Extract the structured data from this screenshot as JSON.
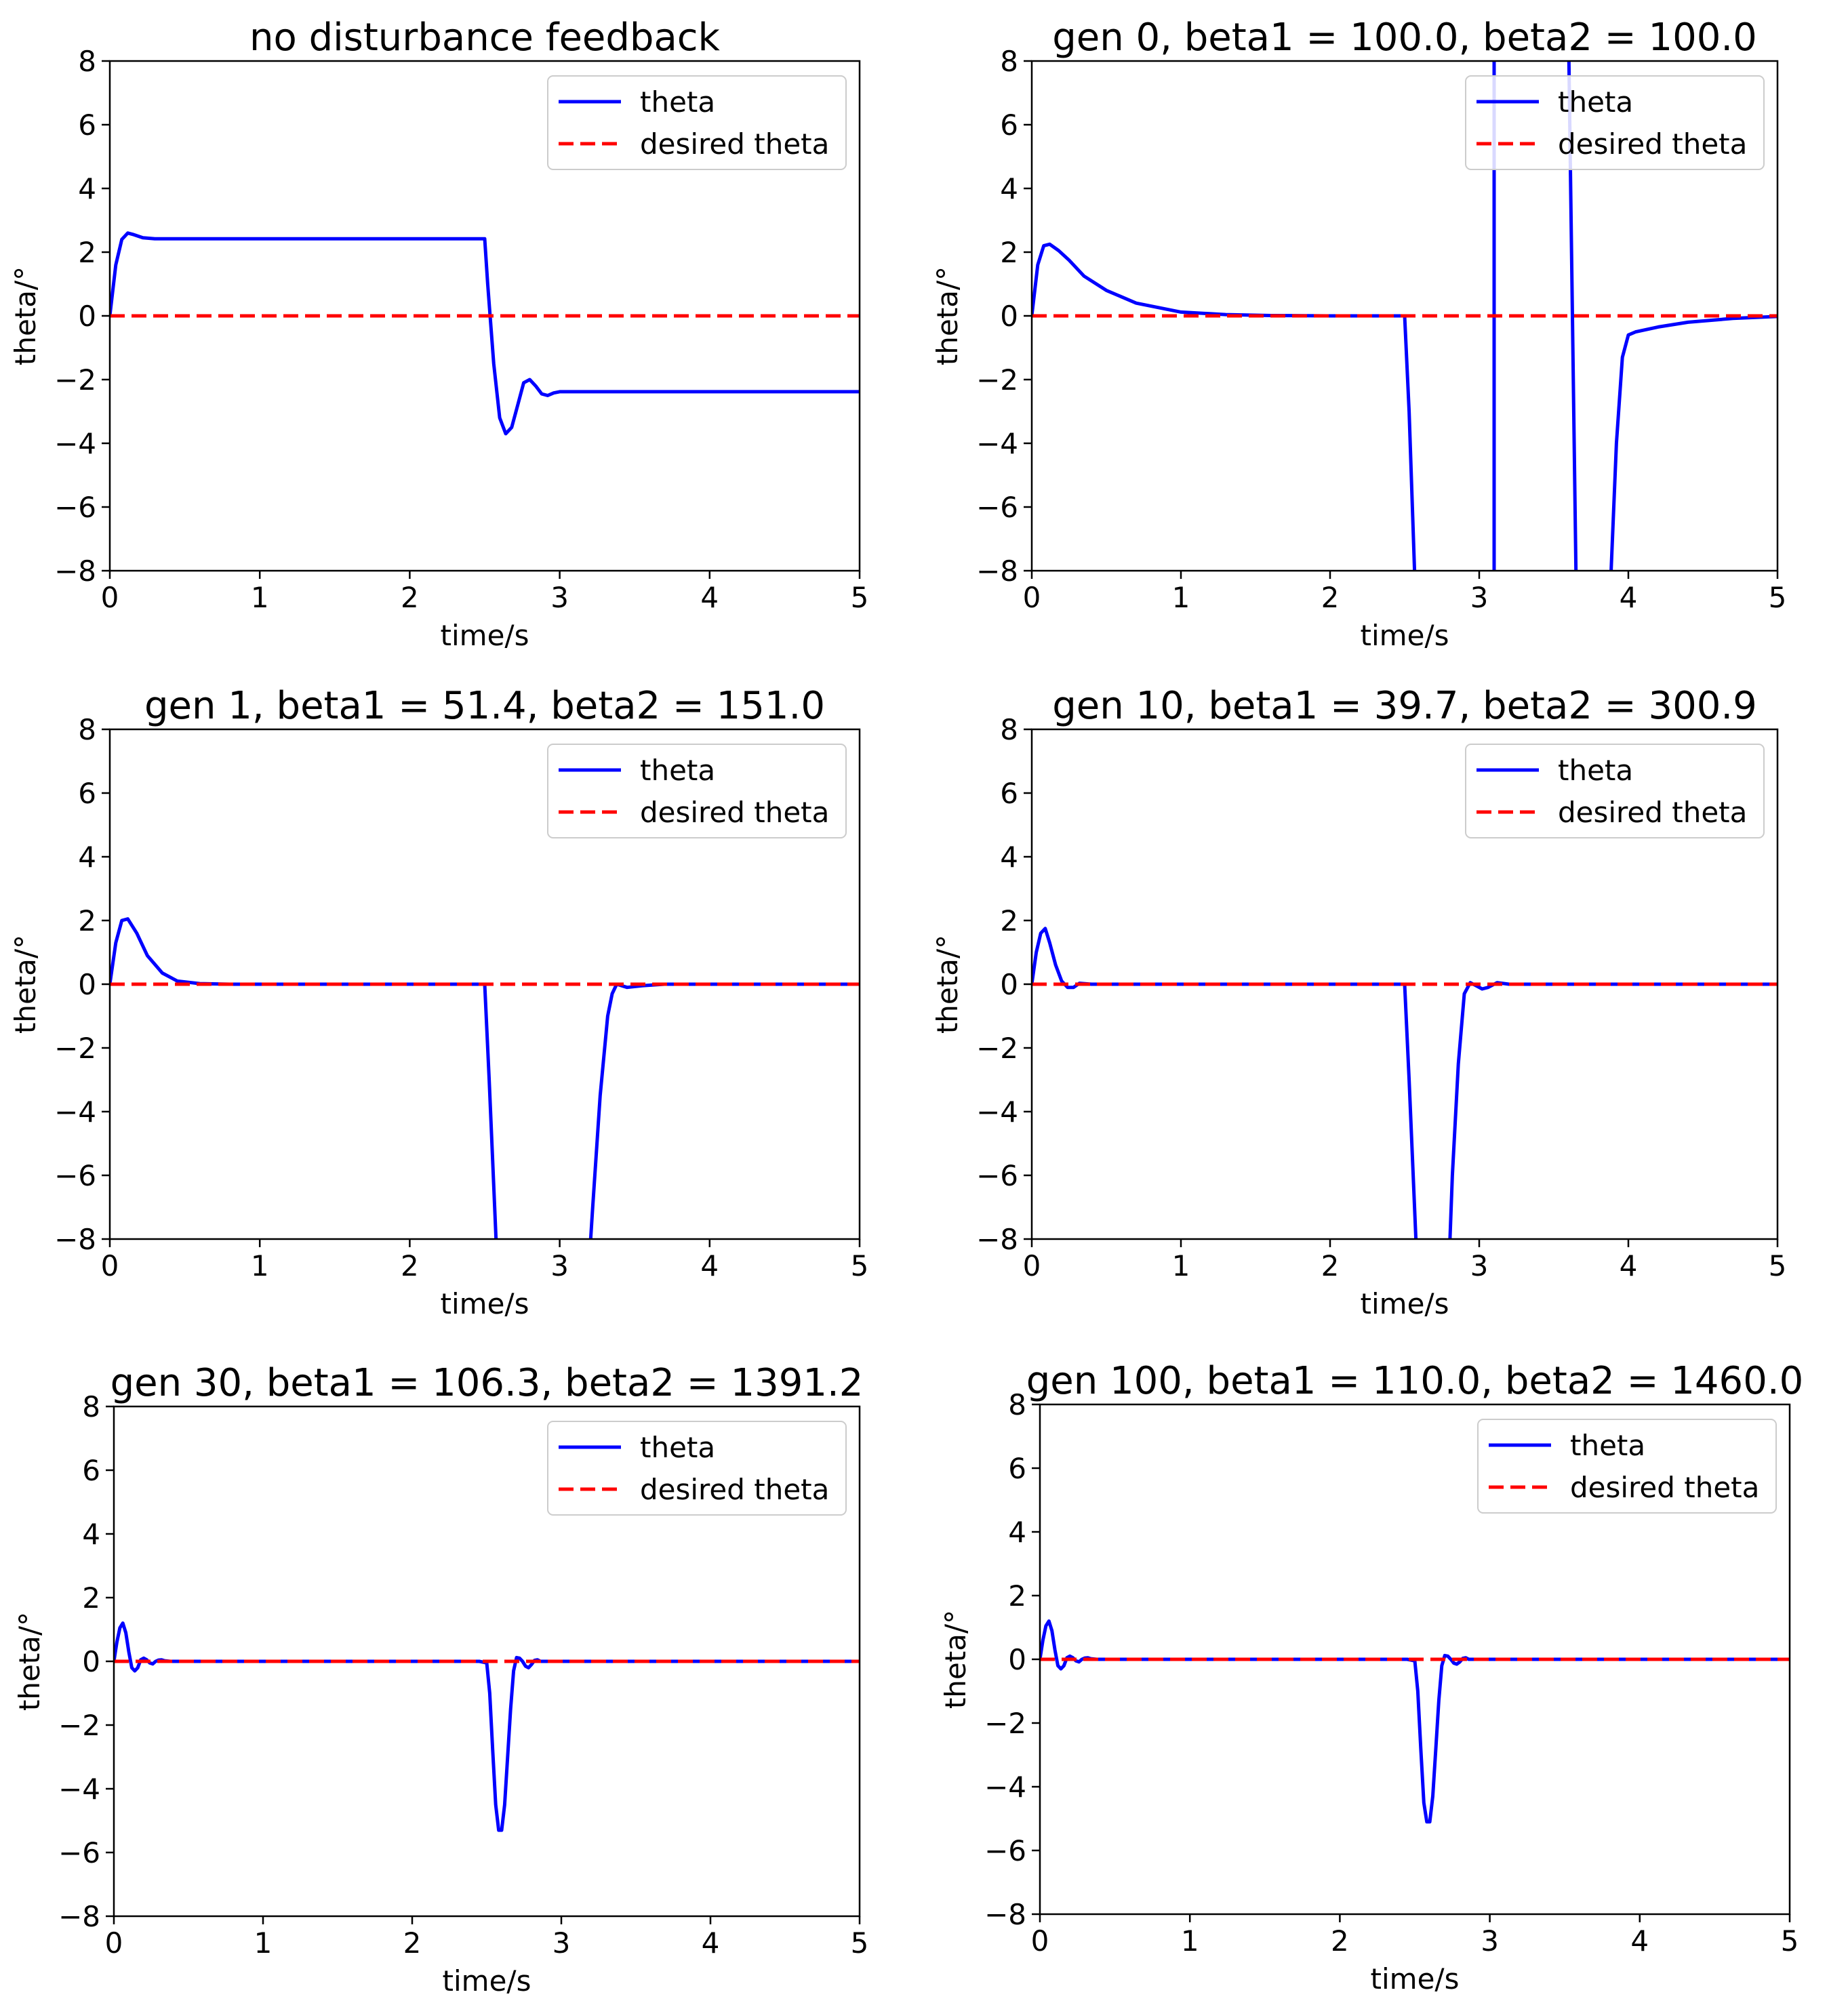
{
  "chart_data": [
    {
      "type": "line",
      "title": "no disturbance feedback",
      "xlabel": "time/s",
      "ylabel": "theta/°",
      "xlim": [
        0,
        5
      ],
      "ylim": [
        -8,
        8
      ],
      "xticks": [
        "0",
        "1",
        "2",
        "3",
        "4",
        "5"
      ],
      "yticks": [
        "8",
        "6",
        "4",
        "2",
        "0",
        "−2",
        "−4",
        "−6",
        "−8"
      ],
      "legend_position": "top-right",
      "series": [
        {
          "name": "theta",
          "color": "#0000ff",
          "style": "solid",
          "x": [
            0,
            0.04,
            0.08,
            0.12,
            0.16,
            0.22,
            0.3,
            0.5,
            1.0,
            1.5,
            2.0,
            2.3,
            2.5,
            2.52,
            2.56,
            2.6,
            2.64,
            2.68,
            2.72,
            2.76,
            2.8,
            2.84,
            2.88,
            2.92,
            2.96,
            3.0,
            3.1,
            3.5,
            4.0,
            4.5,
            5.0
          ],
          "y": [
            0,
            1.6,
            2.4,
            2.6,
            2.55,
            2.45,
            2.42,
            2.42,
            2.42,
            2.42,
            2.42,
            2.42,
            2.42,
            1.0,
            -1.5,
            -3.2,
            -3.7,
            -3.5,
            -2.8,
            -2.1,
            -2.0,
            -2.2,
            -2.45,
            -2.5,
            -2.42,
            -2.38,
            -2.38,
            -2.38,
            -2.38,
            -2.38,
            -2.38
          ]
        },
        {
          "name": "desired theta",
          "color": "#ff0000",
          "style": "dashed",
          "x": [
            0,
            5
          ],
          "y": [
            0,
            0
          ]
        }
      ]
    },
    {
      "type": "line",
      "title": "gen 0, beta1 = 100.0, beta2 = 100.0",
      "xlabel": "time/s",
      "ylabel": "theta/°",
      "xlim": [
        0,
        5
      ],
      "ylim": [
        -8,
        8
      ],
      "xticks": [
        "0",
        "1",
        "2",
        "3",
        "4",
        "5"
      ],
      "yticks": [
        "8",
        "6",
        "4",
        "2",
        "0",
        "−2",
        "−4",
        "−6",
        "−8"
      ],
      "legend_position": "top-right",
      "series": [
        {
          "name": "theta",
          "color": "#0000ff",
          "style": "solid",
          "x": [
            0,
            0.04,
            0.08,
            0.12,
            0.18,
            0.25,
            0.35,
            0.5,
            0.7,
            1.0,
            1.3,
            1.6,
            2.0,
            2.4,
            2.5,
            2.53,
            2.57,
            3.1,
            3.1,
            3.6,
            3.65,
            3.88,
            3.92,
            3.96,
            4.0,
            4.05,
            4.2,
            4.4,
            4.7,
            5.0
          ],
          "y": [
            0,
            1.6,
            2.2,
            2.25,
            2.05,
            1.75,
            1.25,
            0.8,
            0.4,
            0.12,
            0.04,
            0.01,
            0,
            0,
            0,
            -3,
            -8.5,
            -8.5,
            8.5,
            8.5,
            -8.5,
            -8.5,
            -4,
            -1.3,
            -0.6,
            -0.5,
            -0.35,
            -0.2,
            -0.08,
            -0.02
          ]
        },
        {
          "name": "desired theta",
          "color": "#ff0000",
          "style": "dashed",
          "x": [
            0,
            5
          ],
          "y": [
            0,
            0
          ]
        }
      ]
    },
    {
      "type": "line",
      "title": "gen 1, beta1 = 51.4, beta2 = 151.0",
      "xlabel": "time/s",
      "ylabel": "theta/°",
      "xlim": [
        0,
        5
      ],
      "ylim": [
        -8,
        8
      ],
      "xticks": [
        "0",
        "1",
        "2",
        "3",
        "4",
        "5"
      ],
      "yticks": [
        "8",
        "6",
        "4",
        "2",
        "0",
        "−2",
        "−4",
        "−6",
        "−8"
      ],
      "legend_position": "top-right",
      "series": [
        {
          "name": "theta",
          "color": "#0000ff",
          "style": "solid",
          "x": [
            0,
            0.04,
            0.08,
            0.12,
            0.18,
            0.25,
            0.35,
            0.45,
            0.6,
            0.8,
            1.5,
            2.4,
            2.5,
            2.53,
            2.58,
            3.2,
            3.22,
            3.27,
            3.32,
            3.35,
            3.38,
            3.45,
            3.55,
            3.7,
            5.0
          ],
          "y": [
            0,
            1.3,
            2.0,
            2.05,
            1.6,
            0.9,
            0.35,
            0.1,
            0.02,
            0,
            0,
            0,
            0,
            -3,
            -8.5,
            -8.5,
            -7,
            -3.5,
            -1,
            -0.3,
            0,
            -0.1,
            -0.05,
            0,
            0
          ]
        },
        {
          "name": "desired theta",
          "color": "#ff0000",
          "style": "dashed",
          "x": [
            0,
            5
          ],
          "y": [
            0,
            0
          ]
        }
      ]
    },
    {
      "type": "line",
      "title": "gen 10, beta1 = 39.7, beta2 = 300.9",
      "xlabel": "time/s",
      "ylabel": "theta/°",
      "xlim": [
        0,
        5
      ],
      "ylim": [
        -8,
        8
      ],
      "xticks": [
        "0",
        "1",
        "2",
        "3",
        "4",
        "5"
      ],
      "yticks": [
        "8",
        "6",
        "4",
        "2",
        "0",
        "−2",
        "−4",
        "−6",
        "−8"
      ],
      "legend_position": "top-right",
      "series": [
        {
          "name": "theta",
          "color": "#0000ff",
          "style": "solid",
          "x": [
            0,
            0.03,
            0.06,
            0.09,
            0.12,
            0.16,
            0.2,
            0.24,
            0.28,
            0.32,
            0.4,
            0.6,
            2.4,
            2.5,
            2.53,
            2.58,
            2.8,
            2.82,
            2.86,
            2.9,
            2.94,
            2.98,
            3.02,
            3.06,
            3.12,
            3.2,
            3.4,
            5.0
          ],
          "y": [
            0,
            1.0,
            1.6,
            1.75,
            1.3,
            0.6,
            0.1,
            -0.1,
            -0.1,
            0.03,
            0,
            0,
            0,
            0,
            -3,
            -8.5,
            -8.5,
            -6,
            -2.5,
            -0.3,
            0.05,
            -0.05,
            -0.15,
            -0.1,
            0.05,
            0,
            0,
            0
          ]
        },
        {
          "name": "desired theta",
          "color": "#ff0000",
          "style": "dashed",
          "x": [
            0,
            5
          ],
          "y": [
            0,
            0
          ]
        }
      ]
    },
    {
      "type": "line",
      "title": "gen 30, beta1 = 106.3, beta2 = 1391.2",
      "xlabel": "time/s",
      "ylabel": "theta/°",
      "xlim": [
        0,
        5
      ],
      "ylim": [
        -8,
        8
      ],
      "xticks": [
        "0",
        "1",
        "2",
        "3",
        "4",
        "5"
      ],
      "yticks": [
        "8",
        "6",
        "4",
        "2",
        "0",
        "−2",
        "−4",
        "−6",
        "−8"
      ],
      "legend_position": "top-right",
      "series": [
        {
          "name": "theta",
          "color": "#0000ff",
          "style": "solid",
          "x": [
            0,
            0.02,
            0.04,
            0.06,
            0.08,
            0.1,
            0.12,
            0.14,
            0.16,
            0.18,
            0.2,
            0.22,
            0.24,
            0.26,
            0.28,
            0.3,
            0.32,
            0.34,
            0.38,
            0.45,
            2.45,
            2.5,
            2.52,
            2.54,
            2.56,
            2.58,
            2.6,
            2.62,
            2.64,
            2.66,
            2.68,
            2.7,
            2.72,
            2.74,
            2.76,
            2.78,
            2.8,
            2.82,
            2.84,
            2.86,
            2.9,
            5.0
          ],
          "y": [
            0,
            0.6,
            1.05,
            1.2,
            0.9,
            0.3,
            -0.2,
            -0.3,
            -0.2,
            0.05,
            0.1,
            0.05,
            -0.05,
            -0.08,
            0,
            0.04,
            0.05,
            0.02,
            0,
            0,
            0,
            -0.05,
            -1,
            -2.8,
            -4.5,
            -5.3,
            -5.3,
            -4.5,
            -3,
            -1.5,
            -0.3,
            0.12,
            0.1,
            0,
            -0.15,
            -0.2,
            -0.1,
            0.03,
            0.05,
            0,
            0,
            0
          ]
        },
        {
          "name": "desired theta",
          "color": "#ff0000",
          "style": "dashed",
          "x": [
            0,
            5
          ],
          "y": [
            0,
            0
          ]
        }
      ]
    },
    {
      "type": "line",
      "title": "gen 100, beta1 = 110.0, beta2 = 1460.0",
      "xlabel": "time/s",
      "ylabel": "theta/°",
      "xlim": [
        0,
        5
      ],
      "ylim": [
        -8,
        8
      ],
      "xticks": [
        "0",
        "1",
        "2",
        "3",
        "4",
        "5"
      ],
      "yticks": [
        "8",
        "6",
        "4",
        "2",
        "0",
        "−2",
        "−4",
        "−6",
        "−8"
      ],
      "legend_position": "top-right",
      "series": [
        {
          "name": "theta",
          "color": "#0000ff",
          "style": "solid",
          "x": [
            0,
            0.02,
            0.04,
            0.06,
            0.08,
            0.1,
            0.12,
            0.14,
            0.16,
            0.18,
            0.2,
            0.22,
            0.24,
            0.26,
            0.28,
            0.3,
            0.32,
            0.34,
            0.38,
            0.45,
            2.45,
            2.5,
            2.52,
            2.54,
            2.56,
            2.58,
            2.6,
            2.62,
            2.64,
            2.66,
            2.68,
            2.7,
            2.72,
            2.74,
            2.76,
            2.78,
            2.8,
            2.82,
            2.84,
            2.86,
            2.9,
            5.0
          ],
          "y": [
            0,
            0.6,
            1.05,
            1.2,
            0.9,
            0.3,
            -0.2,
            -0.3,
            -0.2,
            0.05,
            0.1,
            0.05,
            -0.05,
            -0.08,
            0,
            0.04,
            0.05,
            0.02,
            0,
            0,
            0,
            -0.05,
            -1,
            -2.8,
            -4.5,
            -5.1,
            -5.1,
            -4.3,
            -2.8,
            -1.3,
            -0.2,
            0.12,
            0.1,
            0,
            -0.12,
            -0.15,
            -0.08,
            0.03,
            0.05,
            0,
            0,
            0
          ]
        },
        {
          "name": "desired theta",
          "color": "#ff0000",
          "style": "dashed",
          "x": [
            0,
            5
          ],
          "y": [
            0,
            0
          ]
        }
      ]
    }
  ]
}
